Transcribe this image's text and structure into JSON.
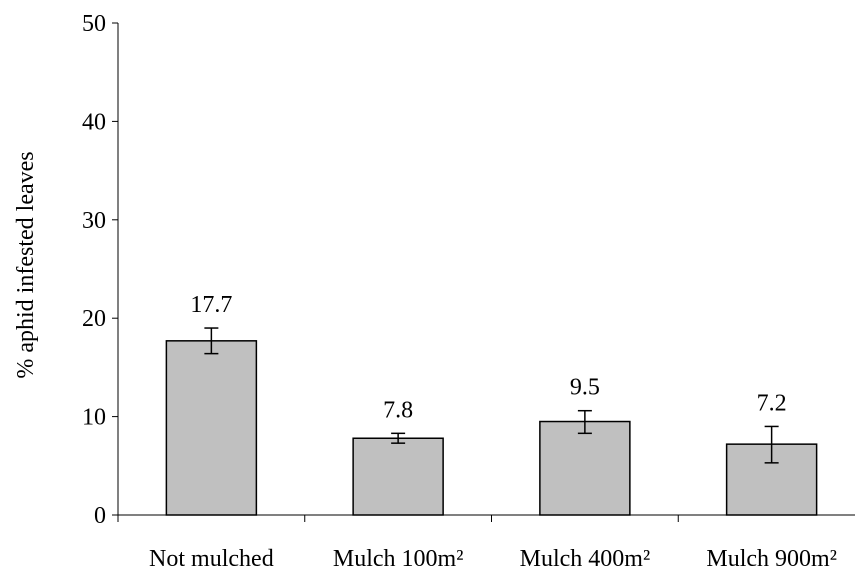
{
  "chart_data": {
    "type": "bar",
    "title": "",
    "xlabel": "",
    "ylabel": "% aphid infested leaves",
    "categories": [
      "Not mulched",
      "Mulch 100m²",
      "Mulch 400m²",
      "Mulch 900m²"
    ],
    "values": [
      17.7,
      7.8,
      9.5,
      7.2
    ],
    "data_labels": [
      "17.7",
      "7.8",
      "9.5",
      "7.2"
    ],
    "error_bars": {
      "lower": [
        16.4,
        7.3,
        8.3,
        5.3
      ],
      "upper": [
        19.0,
        8.3,
        10.6,
        9.0
      ]
    },
    "ylim": [
      0,
      50
    ],
    "yticks": [
      0,
      10,
      20,
      30,
      40,
      50
    ],
    "ytick_labels": [
      "0",
      "10",
      "20",
      "30",
      "40",
      "50"
    ],
    "grid": false,
    "colors": {
      "bar_fill": "#c0c0c0",
      "bar_stroke": "#000000",
      "axis": "#000000",
      "text": "#000000"
    }
  }
}
